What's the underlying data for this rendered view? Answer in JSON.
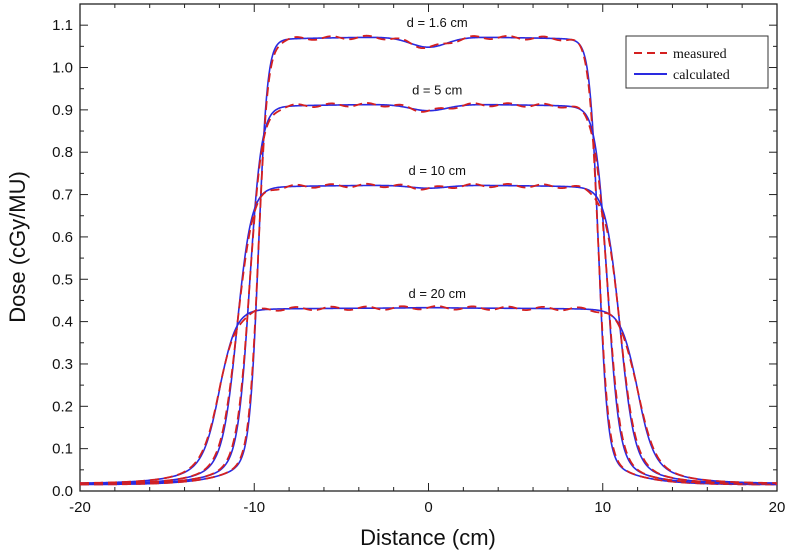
{
  "chart_data": {
    "type": "line",
    "xlabel": "Distance (cm)",
    "ylabel": "Dose (cGy/MU)",
    "xlim": [
      -20,
      20
    ],
    "ylim": [
      0,
      1.15
    ],
    "xticks": [
      -20,
      -10,
      0,
      10,
      20
    ],
    "xtick_labels": [
      "-20",
      "-10",
      "0",
      "10",
      "20"
    ],
    "yticks": [
      0,
      0.1,
      0.2,
      0.3,
      0.4,
      0.5,
      0.6,
      0.7,
      0.8,
      0.9,
      1.0,
      1.1
    ],
    "ytick_labels": [
      "0.0",
      "0.1",
      "0.2",
      "0.3",
      "0.4",
      "0.5",
      "0.6",
      "0.7",
      "0.8",
      "0.9",
      "1.0",
      "1.1"
    ],
    "grid": false,
    "legend_position": "top-right",
    "legend": [
      {
        "label": "measured",
        "color": "#d42020",
        "style": "dashed"
      },
      {
        "label": "calculated",
        "color": "#2a2ae0",
        "style": "solid"
      }
    ],
    "profiles": [
      {
        "label": "d = 1.6 cm",
        "edge": 9.75,
        "width": 0.25,
        "plateau": 1.072,
        "dip": 1.048,
        "tail": 0.015
      },
      {
        "label": "d = 5 cm",
        "edge": 10.25,
        "width": 0.33,
        "plateau": 0.913,
        "dip": 0.898,
        "tail": 0.016
      },
      {
        "label": "d = 10 cm",
        "edge": 10.95,
        "width": 0.4,
        "plateau": 0.722,
        "dip": 0.715,
        "tail": 0.017
      },
      {
        "label": "d = 20 cm",
        "edge": 11.9,
        "width": 0.45,
        "plateau": 0.432,
        "dip": 0.433,
        "tail": 0.018
      }
    ]
  }
}
